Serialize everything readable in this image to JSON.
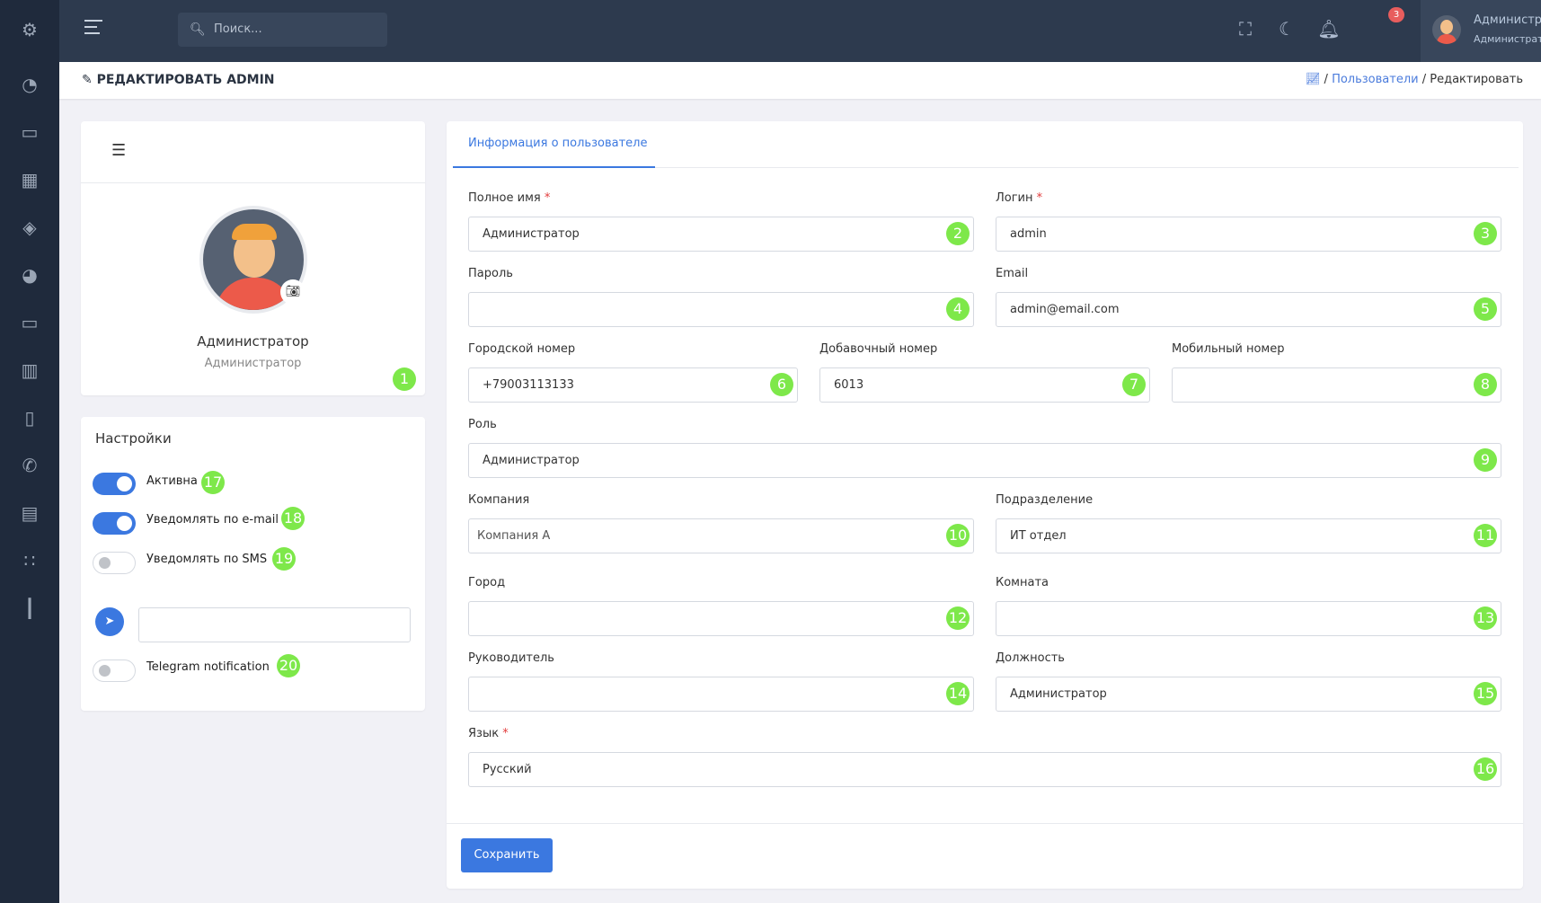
{
  "sidebar": {
    "icons": [
      "settings-icon",
      "dashboard-icon",
      "tickets-icon",
      "calendar-icon",
      "layers-icon",
      "chart-pie-icon",
      "laptop-icon",
      "inventory-icon",
      "book-icon",
      "phone-icon",
      "contacts-icon",
      "apps-icon",
      "bar-chart-icon"
    ]
  },
  "topbar": {
    "search_placeholder": "Поиск...",
    "notifications_count": "3",
    "user_name": "Администратор",
    "user_role": "Администратор"
  },
  "header": {
    "title": "РЕДАКТИРОВАТЬ ADMIN",
    "breadcrumb": {
      "sep": "/",
      "link": "Пользователи",
      "current": "Редактировать"
    }
  },
  "profile": {
    "name": "Администратор",
    "role": "Администратор",
    "badge": "1"
  },
  "settings": {
    "title": "Настройки",
    "toggles": [
      {
        "label": "Активна",
        "on": true,
        "badge": "17"
      },
      {
        "label": "Уведомлять по e-mail",
        "on": true,
        "badge": "18"
      },
      {
        "label": "Уведомлять по SMS",
        "on": false,
        "badge": "19"
      },
      {
        "label": "Telegram notification",
        "on": false,
        "badge": "20"
      }
    ],
    "telegram_value": ""
  },
  "form": {
    "tab": "Информация о пользователе",
    "fields": {
      "full_name": {
        "label": "Полное имя",
        "required": "*",
        "value": "Администратор",
        "badge": "2"
      },
      "login": {
        "label": "Логин",
        "required": "*",
        "value": "admin",
        "badge": "3"
      },
      "password": {
        "label": "Пароль",
        "value": "",
        "badge": "4"
      },
      "email": {
        "label": "Email",
        "value": "admin@email.com",
        "badge": "5"
      },
      "city_phone": {
        "label": "Городской номер",
        "value": "+79003113133",
        "badge": "6"
      },
      "ext_phone": {
        "label": "Добавочный номер",
        "value": "6013",
        "badge": "7"
      },
      "mobile": {
        "label": "Мобильный номер",
        "value": "",
        "badge": "8"
      },
      "role": {
        "label": "Роль",
        "value": "Администратор",
        "badge": "9"
      },
      "company": {
        "label": "Компания",
        "value": "Компания А",
        "badge": "10"
      },
      "department": {
        "label": "Подразделение",
        "value": "ИТ отдел",
        "badge": "11"
      },
      "city": {
        "label": "Город",
        "value": "",
        "badge": "12"
      },
      "room": {
        "label": "Комната",
        "value": "",
        "badge": "13"
      },
      "manager": {
        "label": "Руководитель",
        "value": "",
        "badge": "14"
      },
      "position": {
        "label": "Должность",
        "value": "Администратор",
        "badge": "15"
      },
      "language": {
        "label": "Язык",
        "required": "*",
        "value": "Русский",
        "badge": "16"
      }
    },
    "save_label": "Сохранить"
  },
  "colors": {
    "accent": "#3b78e0",
    "sidebar": "#1f2a3c",
    "topbar": "#2d3a4e",
    "badge": "#7ee84a"
  }
}
